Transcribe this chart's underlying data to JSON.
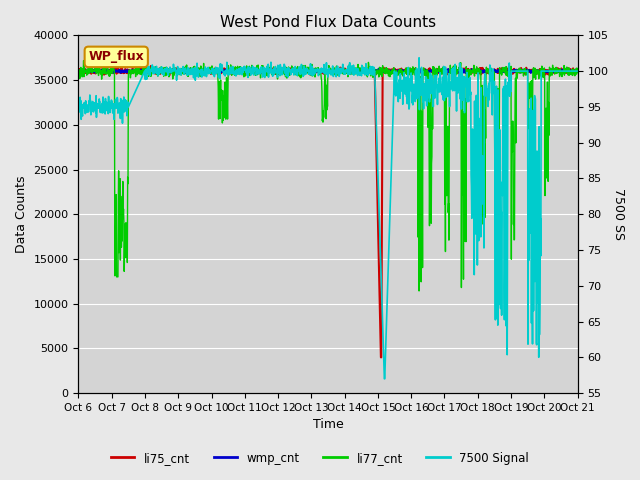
{
  "title": "West Pond Flux Data Counts",
  "xlabel": "Time",
  "ylabel_left": "Data Counts",
  "ylabel_right": "7500 SS",
  "ylim_left": [
    0,
    40000
  ],
  "ylim_right": [
    55,
    105
  ],
  "background_color": "#e8e8e8",
  "plot_bg_color": "#d4d4d4",
  "legend_box_color": "#ffff99",
  "legend_box_text": "WP_flux",
  "legend_box_text_color": "#8b0000",
  "x_tick_labels": [
    "Oct 6",
    "Oct 7",
    "Oct 8",
    "Oct 9",
    "Oct 10",
    "Oct 11",
    "Oct 12",
    "Oct 13",
    "Oct 14",
    "Oct 15",
    "Oct 16",
    "Oct 17",
    "Oct 18",
    "Oct 19",
    "Oct 20",
    "Oct 21"
  ],
  "series": {
    "li75_cnt": {
      "color": "#cc0000",
      "lw": 1.5
    },
    "wmp_cnt": {
      "color": "#0000cc",
      "lw": 1.5
    },
    "li77_cnt": {
      "color": "#00cc00",
      "lw": 1.0
    },
    "7500 Signal": {
      "color": "#00cccc",
      "lw": 1.2
    }
  }
}
